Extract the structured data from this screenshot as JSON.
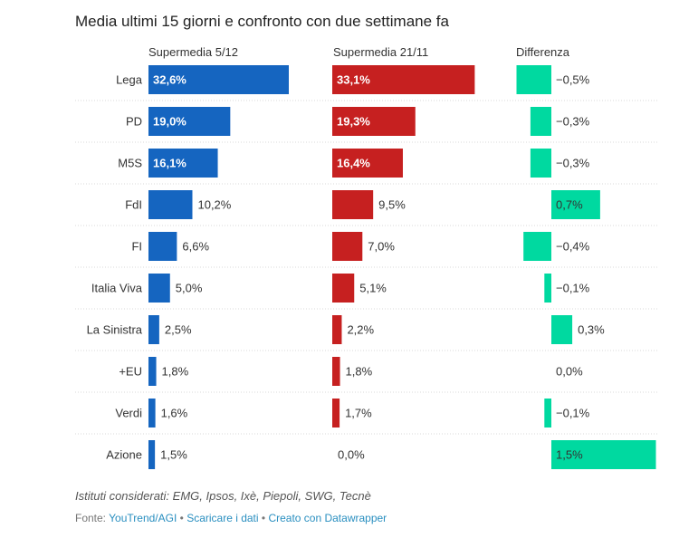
{
  "chart_data": {
    "type": "bar",
    "title": "Media ultimi 15 giorni e confronto con due settimane fa",
    "categories": [
      "Lega",
      "PD",
      "M5S",
      "FdI",
      "FI",
      "Italia Viva",
      "La Sinistra",
      "+EU",
      "Verdi",
      "Azione"
    ],
    "series": [
      {
        "name": "Supermedia 5/12",
        "values": [
          32.6,
          19.0,
          16.1,
          10.2,
          6.6,
          5.0,
          2.5,
          1.8,
          1.6,
          1.5
        ],
        "labels": [
          "32,6%",
          "19,0%",
          "16,1%",
          "10,2%",
          "6,6%",
          "5,0%",
          "2,5%",
          "1,8%",
          "1,6%",
          "1,5%"
        ],
        "color": "#1565c0"
      },
      {
        "name": "Supermedia 21/11",
        "values": [
          33.1,
          19.3,
          16.4,
          9.5,
          7.0,
          5.1,
          2.2,
          1.8,
          1.7,
          0.0
        ],
        "labels": [
          "33,1%",
          "19,3%",
          "16,4%",
          "9,5%",
          "7,0%",
          "5,1%",
          "2,2%",
          "1,8%",
          "1,7%",
          "0,0%"
        ],
        "color": "#c62020"
      },
      {
        "name": "Differenza",
        "values": [
          -0.5,
          -0.3,
          -0.3,
          0.7,
          -0.4,
          -0.1,
          0.3,
          0.0,
          -0.1,
          1.5
        ],
        "labels": [
          "−0,5%",
          "−0,3%",
          "−0,3%",
          "0,7%",
          "−0,4%",
          "−0,1%",
          "0,3%",
          "0,0%",
          "−0,1%",
          "1,5%"
        ],
        "color": "#00d9a0"
      }
    ],
    "grid": false,
    "legend": "none"
  },
  "footer": {
    "notes": "Istituti considerati: EMG, Ipsos, Ixè, Piepoli, SWG, Tecnè",
    "source_prefix": "Fonte: ",
    "source_link": "YouTrend/AGI",
    "separator": " • ",
    "download_link": "Scaricare i dati",
    "created_link": "Creato con Datawrapper"
  },
  "colors": {
    "row_divider": "#d8d8d8",
    "text": "#333333"
  }
}
